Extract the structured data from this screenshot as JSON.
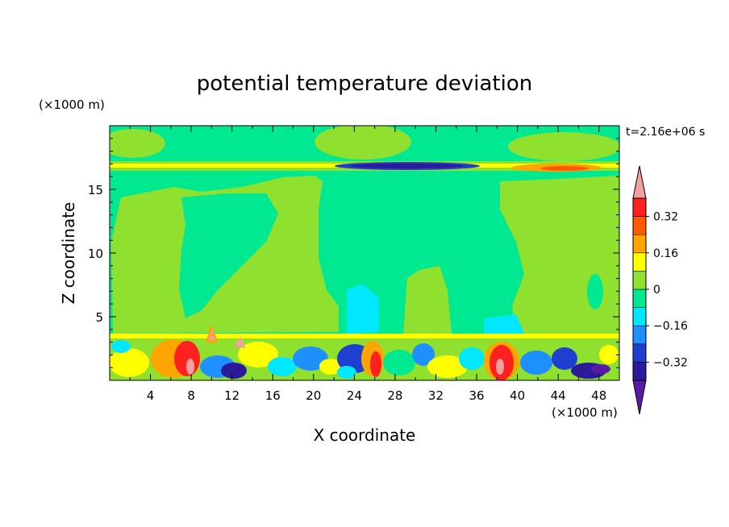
{
  "chart_data": {
    "type": "heatmap",
    "title": "potential temperature deviation",
    "time_label": "t=2.16e+06 s",
    "xlabel": "X coordinate",
    "ylabel": "Z coordinate",
    "x_unit": "(×1000 m)",
    "y_unit": "(×1000 m)",
    "xlim": [
      0,
      50
    ],
    "ylim": [
      0,
      20
    ],
    "x_ticks": [
      4,
      8,
      12,
      16,
      20,
      24,
      28,
      32,
      36,
      40,
      44,
      48
    ],
    "y_ticks": [
      5,
      10,
      15
    ],
    "colorbar": {
      "levels": [
        -0.4,
        -0.32,
        -0.24,
        -0.16,
        -0.08,
        0,
        0.08,
        0.16,
        0.24,
        0.32,
        0.4
      ],
      "labeled_levels": [
        -0.32,
        -0.16,
        0,
        0.16,
        0.32
      ],
      "labels": [
        "0.32",
        "0.16",
        "0",
        "−0.16",
        "−0.32"
      ],
      "colors": [
        "#5a1aa8",
        "#2b1a9a",
        "#1e3fd0",
        "#1e90ff",
        "#00e8ff",
        "#00e890",
        "#90e030",
        "#ffff00",
        "#ffa500",
        "#ff5a00",
        "#ff2020",
        "#f5a0a0"
      ],
      "over_color": "#f5a0a0",
      "under_color": "#5a1aa8"
    }
  }
}
